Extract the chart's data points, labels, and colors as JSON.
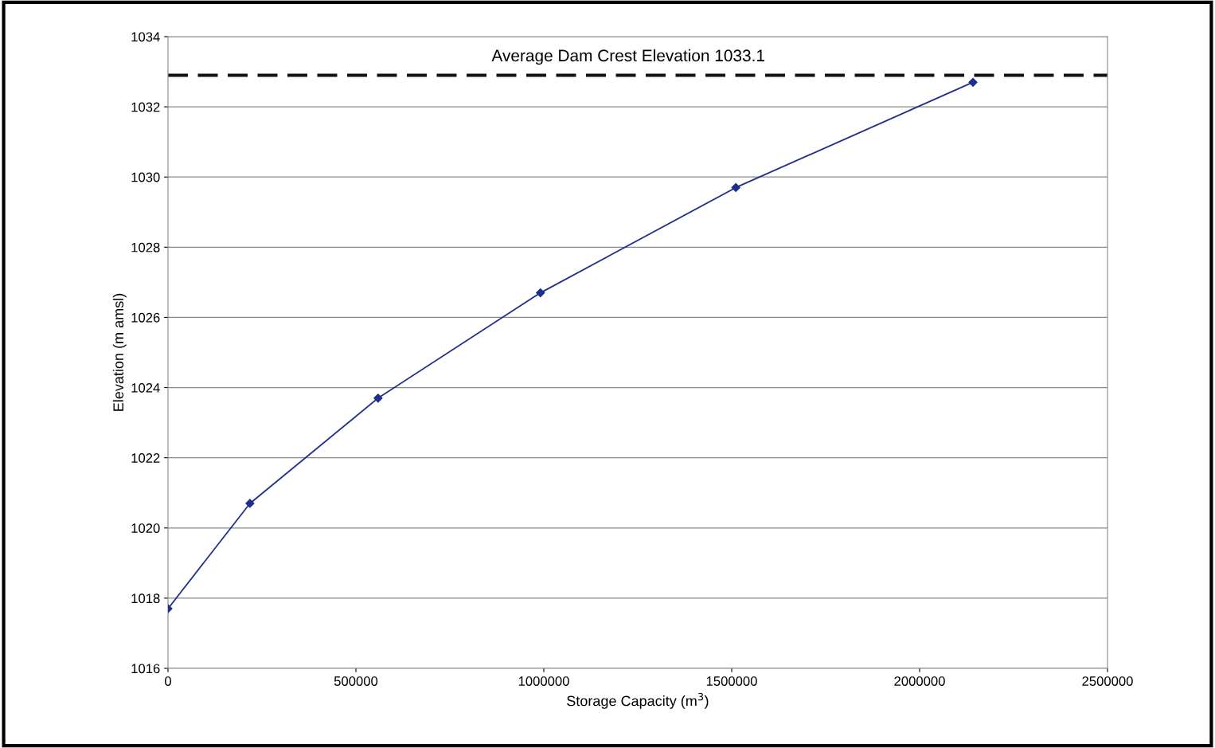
{
  "chart_data": {
    "type": "line",
    "xlabel": "Storage Capacity (m$^{3}$)",
    "ylabel": "Elevation (m amsl)",
    "x": [
      0,
      218000,
      559000,
      991000,
      1511000,
      2142000
    ],
    "series": [
      {
        "color": "#1f2f8c",
        "values": [
          1017.7,
          1020.7,
          1023.7,
          1026.7,
          1029.7,
          1032.7
        ]
      }
    ],
    "xlim": [
      0,
      2500000
    ],
    "xticks": [
      0,
      500000,
      1000000,
      1500000,
      2000000,
      2500000
    ],
    "ylim": [
      1016,
      1034
    ],
    "yticks": [
      1016,
      1018,
      1020,
      1022,
      1024,
      1026,
      1028,
      1030,
      1032,
      1034
    ],
    "ref_lines": [
      {
        "axis": "y",
        "value": 1032.9,
        "label": "Average Dam Crest Elevation 1033.1",
        "color": "#111111",
        "line_style": "dashed"
      }
    ],
    "grid": "y",
    "marker": "diamond",
    "line_style": "solid",
    "legend": false
  }
}
